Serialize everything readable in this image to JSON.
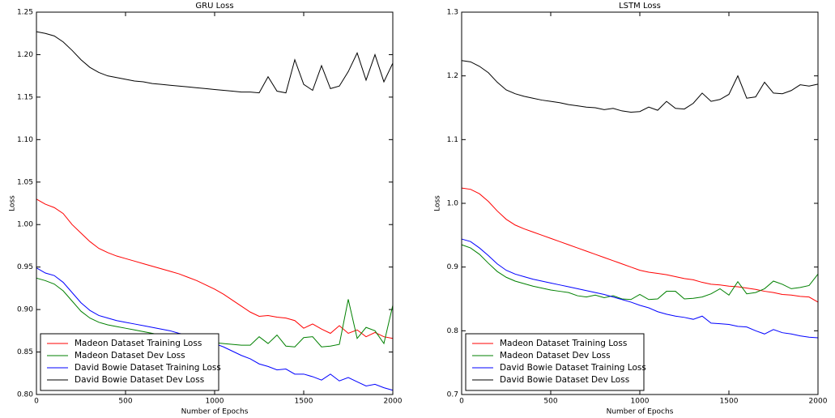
{
  "chart_data": [
    {
      "type": "line",
      "title": "GRU Loss",
      "x_label": "Number of Epochs",
      "y_label": "Loss",
      "x": [
        0,
        50,
        100,
        150,
        200,
        250,
        300,
        350,
        400,
        450,
        500,
        550,
        600,
        650,
        700,
        750,
        800,
        850,
        900,
        950,
        1000,
        1050,
        1100,
        1150,
        1200,
        1250,
        1300,
        1350,
        1400,
        1450,
        1500,
        1550,
        1600,
        1650,
        1700,
        1750,
        1800,
        1850,
        1900,
        1950,
        2000
      ],
      "xlim": [
        0,
        2000
      ],
      "xticks": [
        0,
        500,
        1000,
        1500,
        2000
      ],
      "ylim": [
        0.8,
        1.25
      ],
      "yticks": [
        {
          "value": 0.8,
          "label": "0.80"
        },
        0.85,
        {
          "value": 0.9,
          "label": "0.90"
        },
        0.95,
        {
          "value": 1.0,
          "label": "1.00"
        },
        1.05,
        {
          "value": 1.1,
          "label": "1.10"
        },
        1.15,
        {
          "value": 1.2,
          "label": "1.20"
        },
        1.25
      ],
      "legend": "lower left",
      "series": [
        {
          "name": "Madeon Dataset Training Loss",
          "color": "#ff0000",
          "values": [
            1.03,
            1.024,
            1.02,
            1.013,
            1.0,
            0.99,
            0.98,
            0.972,
            0.967,
            0.963,
            0.96,
            0.957,
            0.954,
            0.951,
            0.948,
            0.945,
            0.942,
            0.938,
            0.934,
            0.929,
            0.924,
            0.918,
            0.911,
            0.904,
            0.897,
            0.892,
            0.893,
            0.891,
            0.89,
            0.887,
            0.878,
            0.883,
            0.877,
            0.872,
            0.881,
            0.872,
            0.876,
            0.868,
            0.873,
            0.868,
            0.866
          ]
        },
        {
          "name": "Madeon Dataset Dev Loss",
          "color": "#008000",
          "values": [
            0.937,
            0.934,
            0.93,
            0.922,
            0.91,
            0.898,
            0.89,
            0.885,
            0.882,
            0.88,
            0.878,
            0.876,
            0.874,
            0.872,
            0.87,
            0.868,
            0.866,
            0.865,
            0.863,
            0.862,
            0.861,
            0.86,
            0.859,
            0.858,
            0.858,
            0.868,
            0.86,
            0.87,
            0.857,
            0.856,
            0.867,
            0.868,
            0.856,
            0.857,
            0.859,
            0.912,
            0.866,
            0.879,
            0.875,
            0.86,
            0.905
          ]
        },
        {
          "name": "David Bowie Dataset Training Loss",
          "color": "#0000ff",
          "values": [
            0.949,
            0.943,
            0.94,
            0.932,
            0.92,
            0.908,
            0.899,
            0.893,
            0.89,
            0.887,
            0.885,
            0.883,
            0.881,
            0.879,
            0.877,
            0.875,
            0.872,
            0.87,
            0.867,
            0.864,
            0.86,
            0.856,
            0.851,
            0.846,
            0.842,
            0.836,
            0.833,
            0.829,
            0.83,
            0.824,
            0.824,
            0.821,
            0.817,
            0.824,
            0.816,
            0.82,
            0.815,
            0.81,
            0.812,
            0.808,
            0.805
          ]
        },
        {
          "name": "David Bowie Dataset Dev Loss",
          "color": "#000000",
          "values": [
            1.227,
            1.225,
            1.222,
            1.215,
            1.205,
            1.194,
            1.185,
            1.179,
            1.175,
            1.173,
            1.171,
            1.169,
            1.168,
            1.166,
            1.165,
            1.164,
            1.163,
            1.162,
            1.161,
            1.16,
            1.159,
            1.158,
            1.157,
            1.156,
            1.156,
            1.155,
            1.174,
            1.157,
            1.155,
            1.194,
            1.165,
            1.158,
            1.187,
            1.16,
            1.163,
            1.18,
            1.202,
            1.17,
            1.2,
            1.168,
            1.19
          ]
        }
      ]
    },
    {
      "type": "line",
      "title": "LSTM Loss",
      "x_label": "Number of Epochs",
      "y_label": "Loss",
      "x": [
        0,
        50,
        100,
        150,
        200,
        250,
        300,
        350,
        400,
        450,
        500,
        550,
        600,
        650,
        700,
        750,
        800,
        850,
        900,
        950,
        1000,
        1050,
        1100,
        1150,
        1200,
        1250,
        1300,
        1350,
        1400,
        1450,
        1500,
        1550,
        1600,
        1650,
        1700,
        1750,
        1800,
        1850,
        1900,
        1950,
        2000
      ],
      "xlim": [
        0,
        2000
      ],
      "xticks": [
        0,
        500,
        1000,
        1500,
        2000
      ],
      "ylim": [
        0.7,
        1.3
      ],
      "yticks": [
        0.7,
        0.8,
        0.9,
        {
          "value": 1.0,
          "label": "1.0"
        },
        1.1,
        1.2,
        1.3
      ],
      "legend": "lower left",
      "series": [
        {
          "name": "Madeon Dataset Training Loss",
          "color": "#ff0000",
          "values": [
            1.024,
            1.022,
            1.015,
            1.003,
            0.988,
            0.975,
            0.966,
            0.96,
            0.955,
            0.95,
            0.945,
            0.94,
            0.935,
            0.93,
            0.925,
            0.92,
            0.915,
            0.91,
            0.905,
            0.9,
            0.895,
            0.892,
            0.89,
            0.888,
            0.885,
            0.882,
            0.88,
            0.876,
            0.873,
            0.872,
            0.87,
            0.869,
            0.867,
            0.865,
            0.862,
            0.86,
            0.857,
            0.856,
            0.854,
            0.853,
            0.845
          ]
        },
        {
          "name": "Madeon Dataset Dev Loss",
          "color": "#008000",
          "values": [
            0.935,
            0.93,
            0.92,
            0.906,
            0.893,
            0.884,
            0.878,
            0.874,
            0.87,
            0.867,
            0.864,
            0.862,
            0.86,
            0.855,
            0.853,
            0.856,
            0.852,
            0.855,
            0.85,
            0.849,
            0.857,
            0.849,
            0.85,
            0.862,
            0.862,
            0.85,
            0.851,
            0.853,
            0.858,
            0.866,
            0.856,
            0.877,
            0.858,
            0.86,
            0.866,
            0.878,
            0.873,
            0.866,
            0.868,
            0.871,
            0.889
          ]
        },
        {
          "name": "David Bowie Dataset Training Loss",
          "color": "#0000ff",
          "values": [
            0.944,
            0.94,
            0.93,
            0.918,
            0.905,
            0.895,
            0.889,
            0.885,
            0.881,
            0.878,
            0.875,
            0.872,
            0.869,
            0.866,
            0.863,
            0.86,
            0.857,
            0.853,
            0.849,
            0.845,
            0.84,
            0.836,
            0.83,
            0.826,
            0.823,
            0.821,
            0.818,
            0.823,
            0.812,
            0.811,
            0.81,
            0.807,
            0.806,
            0.8,
            0.795,
            0.802,
            0.797,
            0.795,
            0.792,
            0.79,
            0.789
          ]
        },
        {
          "name": "David Bowie Dataset Dev Loss",
          "color": "#000000",
          "values": [
            1.224,
            1.222,
            1.215,
            1.205,
            1.19,
            1.178,
            1.172,
            1.168,
            1.165,
            1.162,
            1.16,
            1.158,
            1.155,
            1.153,
            1.151,
            1.15,
            1.147,
            1.149,
            1.145,
            1.143,
            1.144,
            1.151,
            1.146,
            1.16,
            1.149,
            1.148,
            1.157,
            1.173,
            1.16,
            1.163,
            1.171,
            1.2,
            1.165,
            1.167,
            1.19,
            1.173,
            1.172,
            1.177,
            1.186,
            1.184,
            1.187
          ]
        }
      ]
    }
  ]
}
